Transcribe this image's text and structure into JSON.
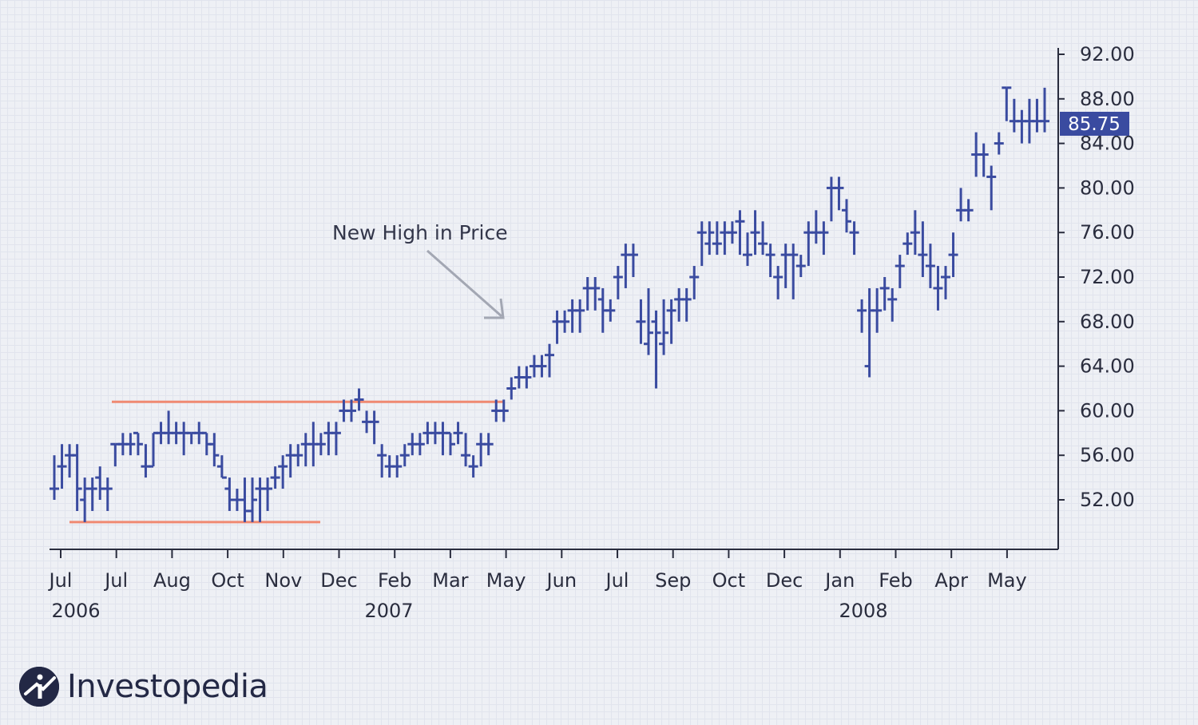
{
  "chart_data": {
    "type": "ohlc",
    "y_ticks": [
      "92.00",
      "88.00",
      "84.00",
      "80.00",
      "76.00",
      "72.00",
      "68.00",
      "64.00",
      "60.00",
      "56.00",
      "52.00"
    ],
    "y_tick_values": [
      92,
      88,
      84,
      80,
      76,
      72,
      68,
      64,
      60,
      56,
      52
    ],
    "x_ticks": [
      "Jul",
      "Jul",
      "Aug",
      "Oct",
      "Nov",
      "Dec",
      "Feb",
      "Mar",
      "May",
      "Jun",
      "Jul",
      "Sep",
      "Oct",
      "Dec",
      "Jan",
      "Feb",
      "Apr",
      "May"
    ],
    "years": [
      "2006",
      "2007",
      "2008"
    ],
    "ylim": [
      47.5,
      93
    ],
    "last_price": "85.75",
    "annotation": "New High in Price",
    "resistance_level": 60.8,
    "support_level": 50.0,
    "series_color": "#3a4ba0",
    "level_color": "#f08a72",
    "bars": [
      [
        53,
        56,
        52,
        53
      ],
      [
        55,
        57,
        53,
        55
      ],
      [
        56,
        57,
        54,
        56
      ],
      [
        56,
        57,
        51,
        53
      ],
      [
        52,
        54,
        50,
        53
      ],
      [
        53,
        54,
        51,
        53
      ],
      [
        54,
        55,
        52,
        53
      ],
      [
        53,
        54,
        51,
        53
      ],
      [
        57,
        57,
        55,
        57
      ],
      [
        57,
        58,
        56,
        57
      ],
      [
        57,
        58,
        56,
        57
      ],
      [
        58,
        58,
        56,
        57
      ],
      [
        55,
        57,
        54,
        55
      ],
      [
        55,
        58,
        55,
        58
      ],
      [
        58,
        59,
        57,
        58
      ],
      [
        58,
        60,
        57,
        58
      ],
      [
        58,
        59,
        57,
        58
      ],
      [
        58,
        59,
        56,
        58
      ],
      [
        58,
        58,
        57,
        58
      ],
      [
        58,
        59,
        57,
        58
      ],
      [
        58,
        58,
        56,
        57
      ],
      [
        57,
        58,
        55,
        56
      ],
      [
        55,
        56,
        54,
        54
      ],
      [
        53,
        54,
        51,
        52
      ],
      [
        52,
        53,
        51,
        52
      ],
      [
        52,
        54,
        50,
        51
      ],
      [
        51,
        54,
        50,
        52
      ],
      [
        53,
        54,
        50,
        53
      ],
      [
        53,
        54,
        51,
        53
      ],
      [
        54,
        55,
        53,
        54
      ],
      [
        55,
        56,
        53,
        55
      ],
      [
        56,
        57,
        54,
        56
      ],
      [
        56,
        57,
        55,
        56
      ],
      [
        57,
        58,
        55,
        57
      ],
      [
        57,
        59,
        55,
        57
      ],
      [
        57,
        58,
        56,
        57
      ],
      [
        58,
        59,
        56,
        58
      ],
      [
        58,
        59,
        56,
        58
      ],
      [
        60,
        61,
        59,
        60
      ],
      [
        60,
        61,
        59,
        60
      ],
      [
        61,
        62,
        60,
        61
      ],
      [
        59,
        60,
        58,
        59
      ],
      [
        59,
        60,
        57,
        59
      ],
      [
        56,
        57,
        54,
        56
      ],
      [
        55,
        56,
        54,
        55
      ],
      [
        55,
        56,
        54,
        55
      ],
      [
        56,
        57,
        55,
        56
      ],
      [
        57,
        58,
        56,
        57
      ],
      [
        57,
        58,
        56,
        57
      ],
      [
        58,
        59,
        57,
        58
      ],
      [
        58,
        59,
        57,
        58
      ],
      [
        58,
        59,
        56,
        58
      ],
      [
        58,
        58,
        56,
        57
      ],
      [
        58,
        59,
        57,
        58
      ],
      [
        56,
        58,
        55,
        56
      ],
      [
        55,
        56,
        54,
        55
      ],
      [
        57,
        58,
        55,
        57
      ],
      [
        57,
        58,
        56,
        57
      ],
      [
        60,
        61,
        59,
        60
      ],
      [
        60,
        61,
        59,
        60
      ],
      [
        62,
        63,
        61,
        62
      ],
      [
        63,
        64,
        62,
        63
      ],
      [
        63,
        64,
        62,
        63
      ],
      [
        64,
        65,
        63,
        64
      ],
      [
        64,
        65,
        63,
        64
      ],
      [
        65,
        66,
        63,
        65
      ],
      [
        68,
        69,
        66,
        68
      ],
      [
        68,
        69,
        67,
        68
      ],
      [
        69,
        70,
        67,
        69
      ],
      [
        69,
        70,
        67,
        69
      ],
      [
        71,
        72,
        69,
        71
      ],
      [
        71,
        72,
        69,
        71
      ],
      [
        70,
        71,
        67,
        69
      ],
      [
        69,
        70,
        68,
        69
      ],
      [
        72,
        73,
        70,
        72
      ],
      [
        74,
        75,
        71,
        74
      ],
      [
        74,
        75,
        72,
        74
      ],
      [
        68,
        70,
        66,
        68
      ],
      [
        66,
        71,
        65,
        67
      ],
      [
        68,
        69,
        62,
        67
      ],
      [
        66,
        70,
        65,
        67
      ],
      [
        69,
        70,
        66,
        69
      ],
      [
        70,
        71,
        68,
        70
      ],
      [
        70,
        71,
        68,
        70
      ],
      [
        72,
        73,
        70,
        72
      ],
      [
        76,
        77,
        73,
        76
      ],
      [
        75,
        77,
        74,
        76
      ],
      [
        75,
        77,
        74,
        75
      ],
      [
        76,
        77,
        74,
        76
      ],
      [
        76,
        77,
        75,
        76
      ],
      [
        77,
        78,
        74,
        77
      ],
      [
        74,
        76,
        73,
        74
      ],
      [
        76,
        78,
        74,
        76
      ],
      [
        75,
        77,
        74,
        75
      ],
      [
        74,
        75,
        72,
        74
      ],
      [
        72,
        73,
        70,
        72
      ],
      [
        74,
        75,
        71,
        74
      ],
      [
        74,
        75,
        70,
        74
      ],
      [
        73,
        74,
        72,
        73
      ],
      [
        76,
        77,
        73,
        76
      ],
      [
        76,
        78,
        75,
        76
      ],
      [
        76,
        77,
        74,
        76
      ],
      [
        80,
        81,
        77,
        80
      ],
      [
        80,
        81,
        78,
        80
      ],
      [
        78,
        79,
        76,
        77
      ],
      [
        76,
        77,
        74,
        76
      ],
      [
        69,
        70,
        67,
        69
      ],
      [
        64,
        71,
        63,
        69
      ],
      [
        69,
        71,
        67,
        69
      ],
      [
        71,
        72,
        69,
        71
      ],
      [
        70,
        71,
        68,
        70
      ],
      [
        73,
        74,
        71,
        73
      ],
      [
        75,
        76,
        74,
        75
      ],
      [
        76,
        78,
        74,
        76
      ],
      [
        74,
        77,
        72,
        74
      ],
      [
        73,
        75,
        71,
        73
      ],
      [
        71,
        73,
        69,
        71
      ],
      [
        72,
        73,
        70,
        72
      ],
      [
        74,
        76,
        72,
        74
      ],
      [
        78,
        80,
        77,
        78
      ],
      [
        78,
        79,
        77,
        78
      ],
      [
        83,
        85,
        81,
        83
      ],
      [
        83,
        84,
        81,
        83
      ],
      [
        81,
        82,
        78,
        81
      ],
      [
        84,
        85,
        83,
        84
      ],
      [
        89,
        89,
        86,
        89
      ],
      [
        86,
        88,
        85,
        86
      ],
      [
        86,
        87,
        84,
        86
      ],
      [
        86,
        88,
        84,
        86
      ],
      [
        86,
        88,
        85,
        86
      ],
      [
        86,
        89,
        85,
        86
      ]
    ]
  },
  "logo": {
    "text": "Investopedia"
  }
}
